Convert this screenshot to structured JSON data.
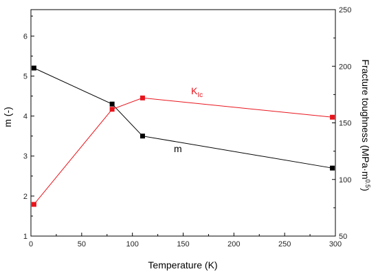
{
  "chart_data": {
    "type": "line",
    "xlabel": "Temperature (K)",
    "ylabel_left": "m (-)",
    "ylabel_right_base": "Fracture toughness (MPa·m",
    "ylabel_right_sup": "0.5",
    "ylabel_right_end": ")",
    "xlim": [
      0,
      300
    ],
    "ylim_left": [
      1,
      6.66
    ],
    "ylim_right": [
      50,
      250
    ],
    "xticks": [
      "0",
      "50",
      "100",
      "150",
      "200",
      "250",
      "300"
    ],
    "yticks_left": [
      "1",
      "2",
      "3",
      "4",
      "5",
      "6"
    ],
    "yticks_right": [
      "50",
      "100",
      "150",
      "200",
      "250"
    ],
    "grid": false,
    "series": [
      {
        "name": "m",
        "axis": "left",
        "color": "#000000",
        "x": [
          3,
          80,
          110,
          297
        ],
        "y": [
          5.2,
          4.3,
          3.5,
          2.7
        ]
      },
      {
        "name_main": "K",
        "name_sub": "Ic",
        "axis": "right",
        "color": "#e8141c",
        "x": [
          3,
          80,
          110,
          297
        ],
        "y": [
          78,
          162,
          172,
          155
        ]
      }
    ]
  }
}
